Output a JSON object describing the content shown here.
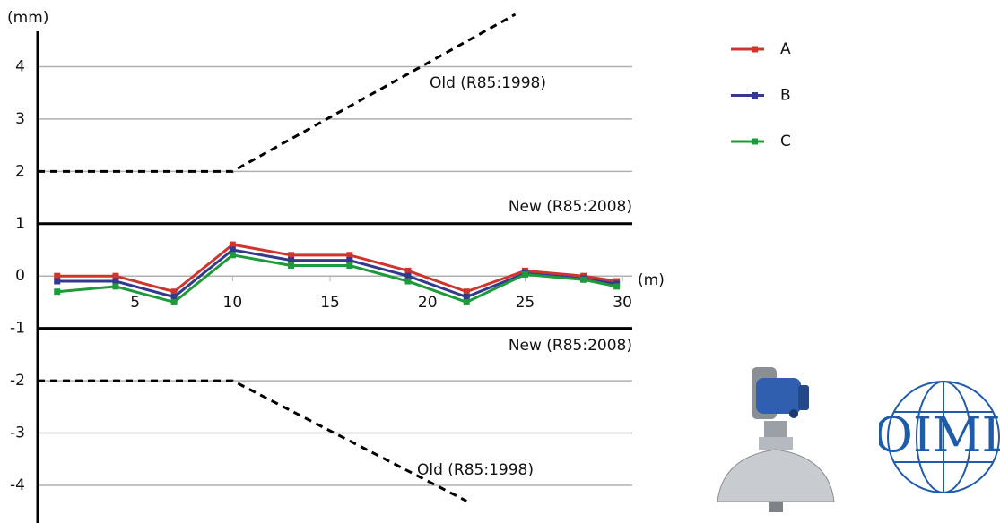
{
  "chart_data": {
    "type": "line",
    "y_label": "(mm)",
    "x_label": "(m)",
    "x": [
      1,
      4,
      7,
      10,
      13,
      16,
      19,
      22,
      25,
      28,
      29.7
    ],
    "series": [
      {
        "name": "A",
        "color": "#d0342c",
        "values": [
          0,
          0,
          -0.3,
          0.6,
          0.4,
          0.4,
          0.1,
          -0.3,
          0.1,
          0,
          -0.1
        ]
      },
      {
        "name": "B",
        "color": "#33398f",
        "values": [
          -0.1,
          -0.1,
          -0.4,
          0.5,
          0.3,
          0.3,
          0,
          -0.4,
          0.05,
          -0.05,
          -0.15
        ]
      },
      {
        "name": "C",
        "color": "#1e9a3a",
        "values": [
          -0.3,
          -0.2,
          -0.5,
          0.4,
          0.2,
          0.2,
          -0.1,
          -0.5,
          0.03,
          -0.07,
          -0.2
        ]
      }
    ],
    "limits": [
      {
        "name": "Old (R85:1998)",
        "style": "dashed",
        "x": [
          0,
          10,
          24.5
        ],
        "y": [
          2,
          2,
          5
        ]
      },
      {
        "name": "New (R85:2008)",
        "style": "solid",
        "x": [
          0,
          30.5
        ],
        "y": [
          1,
          1
        ]
      },
      {
        "name": "New (R85:2008)",
        "style": "solid",
        "x": [
          0,
          30.5
        ],
        "y": [
          -1,
          -1
        ]
      },
      {
        "name": "Old (R85:1998)",
        "style": "dashed",
        "x": [
          0,
          10,
          22
        ],
        "y": [
          -2,
          -2,
          -4.3
        ]
      }
    ],
    "xlim": [
      0,
      30.5
    ],
    "ylim": [
      -4.6,
      5
    ],
    "xticks": [
      5,
      10,
      15,
      20,
      25,
      30
    ],
    "yticks": [
      -4,
      -3,
      -2,
      -1,
      0,
      1,
      2,
      3,
      4
    ],
    "grid": true,
    "legend": "upper right",
    "logo_text": "OIML"
  }
}
